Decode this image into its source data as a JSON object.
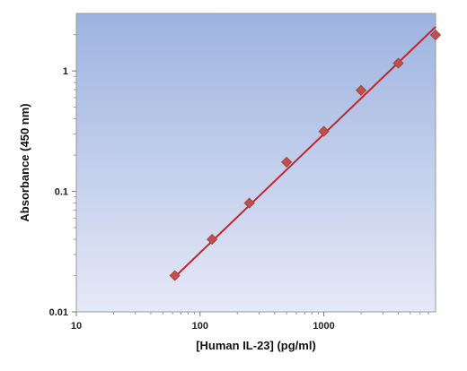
{
  "chart_data": {
    "type": "scatter",
    "xlabel": "[Human IL-23] (pg/ml)",
    "ylabel": "Absorbance (450 nm)",
    "xscale": "log",
    "yscale": "log",
    "xlim": [
      10,
      8000
    ],
    "ylim": [
      0.01,
      3
    ],
    "x_ticks": [
      10,
      100,
      1000
    ],
    "x_tick_labels": [
      "10",
      "100",
      "1000"
    ],
    "y_ticks": [
      0.01,
      0.1,
      1
    ],
    "y_tick_labels": [
      "0.01",
      "0.1",
      "1"
    ],
    "grid": false,
    "legend": "none",
    "background": "vertical gradient from medium blue (top) to pale lavender (bottom)",
    "series": [
      {
        "marker": "diamond",
        "marker_color": "#c0504d",
        "x": [
          62.5,
          125,
          250,
          500,
          1000,
          2000,
          4000,
          8000
        ],
        "y": [
          0.02,
          0.04,
          0.08,
          0.175,
          0.315,
          0.69,
          1.16,
          1.99
        ]
      }
    ],
    "fit_line": {
      "style": "solid",
      "color": "#c0272d",
      "x": [
        62.5,
        8000
      ],
      "y": [
        0.0195,
        2.32
      ]
    },
    "colors": {
      "plot_top": "#9db3e0",
      "plot_bottom": "#e6e9f7",
      "marker": "#c0504d",
      "line": "#c0272d"
    }
  }
}
